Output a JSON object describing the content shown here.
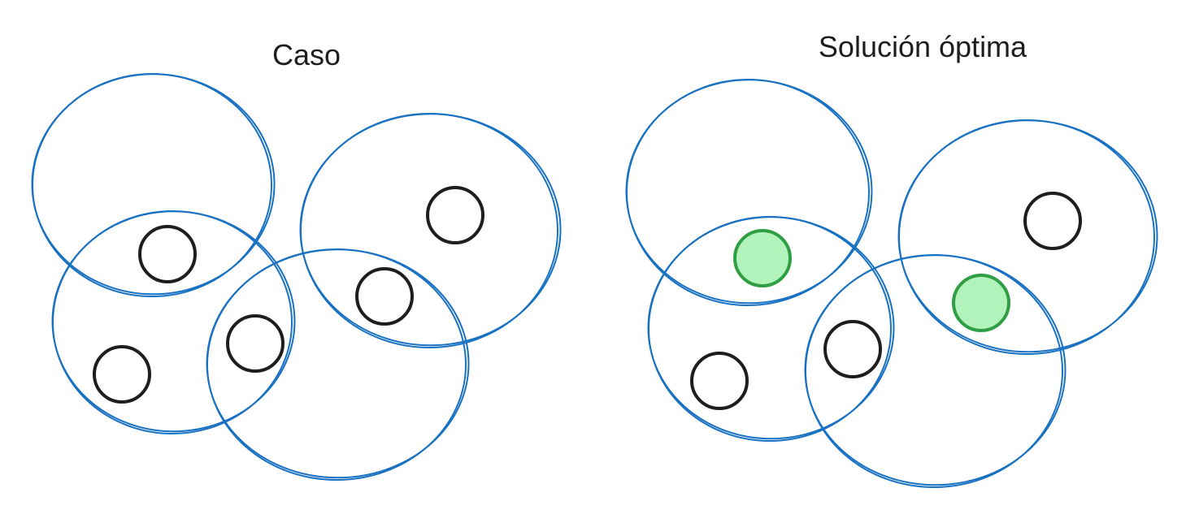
{
  "panels": {
    "left": {
      "title": "Caso"
    },
    "right": {
      "title": "Solución óptima"
    }
  },
  "colors": {
    "set_stroke": "#1971c2",
    "element_stroke": "#1e1e1e",
    "selected_fill": "#b2f2bb",
    "selected_stroke": "#2f9e44",
    "background": "#ffffff"
  },
  "diagram": {
    "left_panel": {
      "sets": 4,
      "elements": 5,
      "selected_elements": 0
    },
    "right_panel": {
      "sets": 4,
      "elements": 5,
      "selected_elements": 2
    }
  }
}
